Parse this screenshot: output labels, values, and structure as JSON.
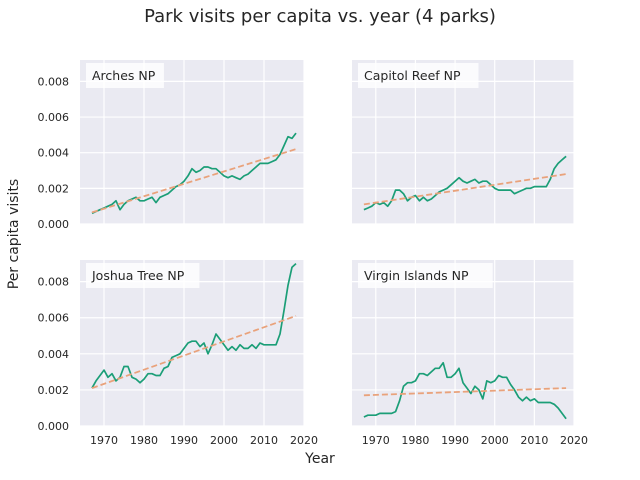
{
  "figure": {
    "title": "Park visits per capita vs. year (4 parks)",
    "xlabel": "Year",
    "ylabel": "Per capita visits",
    "colors": {
      "background": "#eaeaf2",
      "grid": "#ffffff",
      "series": "#1b9e77",
      "trend": "#e9a27b"
    }
  },
  "chart_data": [
    {
      "type": "line",
      "title": "Arches NP",
      "xlim": [
        1964,
        2020
      ],
      "ylim": [
        0,
        0.0092
      ],
      "xticks": [
        "1970",
        "1980",
        "1990",
        "2000",
        "2010",
        "2020"
      ],
      "yticks": [
        "0.000",
        "0.002",
        "0.004",
        "0.006",
        "0.008"
      ],
      "series": [
        {
          "x": [
            1967,
            1968,
            1969,
            1970,
            1971,
            1972,
            1973,
            1974,
            1975,
            1976,
            1977,
            1978,
            1979,
            1980,
            1981,
            1982,
            1983,
            1984,
            1985,
            1986,
            1987,
            1988,
            1989,
            1990,
            1991,
            1992,
            1993,
            1994,
            1995,
            1996,
            1997,
            1998,
            1999,
            2000,
            2001,
            2002,
            2003,
            2004,
            2005,
            2006,
            2007,
            2008,
            2009,
            2010,
            2011,
            2012,
            2013,
            2014,
            2015,
            2016,
            2017,
            2018
          ],
          "y": [
            0.0006,
            0.0007,
            0.0008,
            0.0009,
            0.001,
            0.0011,
            0.0013,
            0.0008,
            0.0011,
            0.0013,
            0.0014,
            0.0015,
            0.0013,
            0.0013,
            0.0014,
            0.0015,
            0.0012,
            0.0015,
            0.0016,
            0.0017,
            0.0019,
            0.0021,
            0.0022,
            0.0024,
            0.0027,
            0.0031,
            0.0029,
            0.003,
            0.0032,
            0.0032,
            0.0031,
            0.0031,
            0.0029,
            0.0027,
            0.0026,
            0.0027,
            0.0026,
            0.0025,
            0.0027,
            0.0028,
            0.003,
            0.0032,
            0.0034,
            0.0034,
            0.0034,
            0.0035,
            0.0036,
            0.0039,
            0.0044,
            0.0049,
            0.0048,
            0.0051
          ]
        },
        {
          "x": [
            1967,
            2018
          ],
          "y": [
            0.00065,
            0.0042
          ],
          "style": "dashed"
        }
      ]
    },
    {
      "type": "line",
      "title": "Capitol Reef NP",
      "xlim": [
        1964,
        2020
      ],
      "ylim": [
        0,
        0.0092
      ],
      "xticks": [
        "1970",
        "1980",
        "1990",
        "2000",
        "2010",
        "2020"
      ],
      "yticks": [
        "0.000",
        "0.002",
        "0.004",
        "0.006",
        "0.008"
      ],
      "series": [
        {
          "x": [
            1967,
            1968,
            1969,
            1970,
            1971,
            1972,
            1973,
            1974,
            1975,
            1976,
            1977,
            1978,
            1979,
            1980,
            1981,
            1982,
            1983,
            1984,
            1985,
            1986,
            1987,
            1988,
            1989,
            1990,
            1991,
            1992,
            1993,
            1994,
            1995,
            1996,
            1997,
            1998,
            1999,
            2000,
            2001,
            2002,
            2003,
            2004,
            2005,
            2006,
            2007,
            2008,
            2009,
            2010,
            2011,
            2012,
            2013,
            2014,
            2015,
            2016,
            2017,
            2018
          ],
          "y": [
            0.0008,
            0.0009,
            0.001,
            0.0012,
            0.0011,
            0.0012,
            0.001,
            0.0013,
            0.0019,
            0.0019,
            0.0017,
            0.0013,
            0.0015,
            0.0016,
            0.0013,
            0.0015,
            0.0013,
            0.0014,
            0.0016,
            0.0018,
            0.0019,
            0.002,
            0.0022,
            0.0024,
            0.0026,
            0.0024,
            0.0023,
            0.0024,
            0.0025,
            0.0023,
            0.0024,
            0.0024,
            0.0022,
            0.002,
            0.0019,
            0.0019,
            0.0019,
            0.0019,
            0.0017,
            0.0018,
            0.0019,
            0.002,
            0.002,
            0.0021,
            0.0021,
            0.0021,
            0.0021,
            0.0025,
            0.0031,
            0.0034,
            0.0036,
            0.0038
          ]
        },
        {
          "x": [
            1967,
            2018
          ],
          "y": [
            0.0011,
            0.0028
          ],
          "style": "dashed"
        }
      ]
    },
    {
      "type": "line",
      "title": "Joshua Tree NP",
      "xlim": [
        1964,
        2020
      ],
      "ylim": [
        0,
        0.0092
      ],
      "xticks": [
        "1970",
        "1980",
        "1990",
        "2000",
        "2010",
        "2020"
      ],
      "yticks": [
        "0.000",
        "0.002",
        "0.004",
        "0.006",
        "0.008"
      ],
      "series": [
        {
          "x": [
            1967,
            1968,
            1969,
            1970,
            1971,
            1972,
            1973,
            1974,
            1975,
            1976,
            1977,
            1978,
            1979,
            1980,
            1981,
            1982,
            1983,
            1984,
            1985,
            1986,
            1987,
            1988,
            1989,
            1990,
            1991,
            1992,
            1993,
            1994,
            1995,
            1996,
            1997,
            1998,
            1999,
            2000,
            2001,
            2002,
            2003,
            2004,
            2005,
            2006,
            2007,
            2008,
            2009,
            2010,
            2011,
            2012,
            2013,
            2014,
            2015,
            2016,
            2017,
            2018
          ],
          "y": [
            0.0021,
            0.0025,
            0.0028,
            0.0031,
            0.0027,
            0.0029,
            0.0025,
            0.0027,
            0.0033,
            0.0033,
            0.0027,
            0.0026,
            0.0024,
            0.0026,
            0.0029,
            0.0029,
            0.0028,
            0.0028,
            0.0032,
            0.0033,
            0.0038,
            0.0039,
            0.004,
            0.0043,
            0.0046,
            0.0047,
            0.0047,
            0.0044,
            0.0046,
            0.004,
            0.0045,
            0.0051,
            0.0048,
            0.0045,
            0.0042,
            0.0044,
            0.0042,
            0.0045,
            0.0043,
            0.0043,
            0.0045,
            0.0043,
            0.0046,
            0.0045,
            0.0045,
            0.0045,
            0.0045,
            0.0051,
            0.0064,
            0.0078,
            0.0088,
            0.009
          ]
        },
        {
          "x": [
            1967,
            2018
          ],
          "y": [
            0.0021,
            0.0061
          ],
          "style": "dashed"
        }
      ]
    },
    {
      "type": "line",
      "title": "Virgin Islands NP",
      "xlim": [
        1964,
        2020
      ],
      "ylim": [
        0,
        0.0092
      ],
      "xticks": [
        "1970",
        "1980",
        "1990",
        "2000",
        "2010",
        "2020"
      ],
      "yticks": [
        "0.000",
        "0.002",
        "0.004",
        "0.006",
        "0.008"
      ],
      "series": [
        {
          "x": [
            1967,
            1968,
            1969,
            1970,
            1971,
            1972,
            1973,
            1974,
            1975,
            1976,
            1977,
            1978,
            1979,
            1980,
            1981,
            1982,
            1983,
            1984,
            1985,
            1986,
            1987,
            1988,
            1989,
            1990,
            1991,
            1992,
            1993,
            1994,
            1995,
            1996,
            1997,
            1998,
            1999,
            2000,
            2001,
            2002,
            2003,
            2004,
            2005,
            2006,
            2007,
            2008,
            2009,
            2010,
            2011,
            2012,
            2013,
            2014,
            2015,
            2016,
            2017,
            2018
          ],
          "y": [
            0.0005,
            0.0006,
            0.0006,
            0.0006,
            0.0007,
            0.0007,
            0.0007,
            0.0007,
            0.0008,
            0.0014,
            0.0022,
            0.0024,
            0.0024,
            0.0025,
            0.0029,
            0.0029,
            0.0028,
            0.003,
            0.0032,
            0.0032,
            0.0035,
            0.0027,
            0.0027,
            0.0029,
            0.0032,
            0.0024,
            0.0021,
            0.0018,
            0.0022,
            0.002,
            0.0015,
            0.0025,
            0.0024,
            0.0025,
            0.0028,
            0.0027,
            0.0027,
            0.0023,
            0.002,
            0.0016,
            0.0014,
            0.0016,
            0.0014,
            0.0015,
            0.0013,
            0.0013,
            0.0013,
            0.0013,
            0.0012,
            0.001,
            0.0007,
            0.0004
          ]
        },
        {
          "x": [
            1967,
            2018
          ],
          "y": [
            0.0017,
            0.0021
          ],
          "style": "dashed"
        }
      ]
    }
  ]
}
